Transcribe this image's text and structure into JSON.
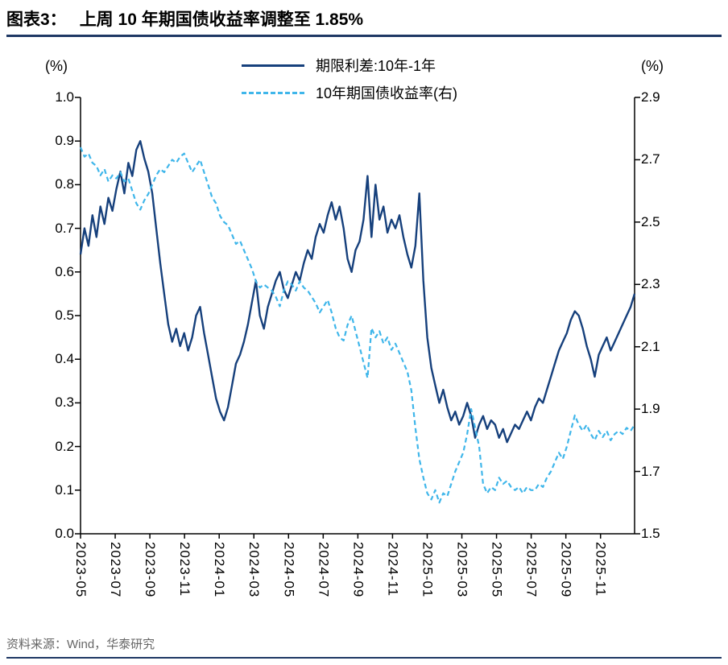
{
  "page": {
    "title_prefix": "图表3：",
    "title_text": "上周 10 年期国债收益率调整至 1.85%",
    "source": "资料来源：Wind，华泰研究"
  },
  "colors": {
    "navy": "#16407C",
    "light_blue": "#3FB6EA",
    "divider": "#1F3864",
    "axis": "#000000",
    "source_text": "#666666"
  },
  "chart_data": {
    "type": "line",
    "title": "上周 10 年期国债收益率调整至 1.85%",
    "grid": false,
    "legend_position": "top",
    "x_start": "2023-05",
    "x_frequency": "weekly (approximate readings of daily data)",
    "x_tick_interval_months": 2,
    "x_tick_labels": [
      "2023-05",
      "2023-07",
      "2023-09",
      "2023-11",
      "2024-01",
      "2024-03",
      "2024-05",
      "2024-07",
      "2024-09",
      "2024-11",
      "2025-01",
      "2025-03",
      "2025-05",
      "2025-07",
      "2025-09",
      "2025-11"
    ],
    "left_axis": {
      "label": "(%)",
      "min": 0.0,
      "max": 1.0,
      "tick_labels": [
        "0.0",
        "0.1",
        "0.2",
        "0.3",
        "0.4",
        "0.5",
        "0.6",
        "0.7",
        "0.8",
        "0.9",
        "1.0"
      ]
    },
    "right_axis": {
      "label": "(%)",
      "min": 1.5,
      "max": 2.9,
      "tick_labels": [
        "1.5",
        "1.7",
        "1.9",
        "2.1",
        "2.3",
        "2.5",
        "2.7",
        "2.9"
      ]
    },
    "series": [
      {
        "name": "期限利差:10年-1年",
        "axis": "left",
        "style": "solid",
        "color": "#16407C",
        "values": [
          0.64,
          0.7,
          0.66,
          0.73,
          0.68,
          0.75,
          0.71,
          0.77,
          0.74,
          0.79,
          0.83,
          0.78,
          0.85,
          0.82,
          0.88,
          0.9,
          0.86,
          0.83,
          0.78,
          0.7,
          0.62,
          0.55,
          0.48,
          0.44,
          0.47,
          0.43,
          0.46,
          0.42,
          0.45,
          0.5,
          0.52,
          0.46,
          0.41,
          0.36,
          0.31,
          0.28,
          0.26,
          0.29,
          0.34,
          0.39,
          0.41,
          0.44,
          0.48,
          0.53,
          0.58,
          0.5,
          0.47,
          0.52,
          0.55,
          0.58,
          0.6,
          0.56,
          0.54,
          0.57,
          0.6,
          0.58,
          0.62,
          0.65,
          0.63,
          0.68,
          0.71,
          0.69,
          0.73,
          0.76,
          0.72,
          0.75,
          0.7,
          0.63,
          0.6,
          0.65,
          0.67,
          0.72,
          0.82,
          0.68,
          0.8,
          0.72,
          0.75,
          0.69,
          0.72,
          0.7,
          0.73,
          0.68,
          0.64,
          0.61,
          0.66,
          0.78,
          0.58,
          0.45,
          0.38,
          0.34,
          0.3,
          0.33,
          0.29,
          0.26,
          0.28,
          0.25,
          0.27,
          0.3,
          0.27,
          0.22,
          0.25,
          0.27,
          0.24,
          0.26,
          0.25,
          0.22,
          0.24,
          0.21,
          0.23,
          0.25,
          0.24,
          0.26,
          0.28,
          0.26,
          0.29,
          0.31,
          0.3,
          0.33,
          0.36,
          0.39,
          0.42,
          0.44,
          0.46,
          0.49,
          0.51,
          0.5,
          0.47,
          0.43,
          0.4,
          0.36,
          0.41,
          0.43,
          0.45,
          0.42,
          0.44,
          0.46,
          0.48,
          0.5,
          0.52,
          0.55
        ]
      },
      {
        "name": "10年期国债收益率(右)",
        "axis": "right",
        "style": "dashed",
        "color": "#3FB6EA",
        "values": [
          2.74,
          2.71,
          2.72,
          2.69,
          2.68,
          2.65,
          2.67,
          2.63,
          2.65,
          2.64,
          2.66,
          2.63,
          2.64,
          2.6,
          2.56,
          2.54,
          2.57,
          2.59,
          2.62,
          2.65,
          2.67,
          2.66,
          2.68,
          2.7,
          2.69,
          2.71,
          2.72,
          2.69,
          2.66,
          2.68,
          2.7,
          2.66,
          2.62,
          2.58,
          2.56,
          2.52,
          2.5,
          2.49,
          2.46,
          2.43,
          2.44,
          2.41,
          2.38,
          2.35,
          2.31,
          2.29,
          2.3,
          2.29,
          2.28,
          2.26,
          2.23,
          2.28,
          2.31,
          2.3,
          2.28,
          2.31,
          2.29,
          2.28,
          2.26,
          2.24,
          2.21,
          2.23,
          2.25,
          2.21,
          2.16,
          2.13,
          2.12,
          2.17,
          2.2,
          2.15,
          2.1,
          2.05,
          2.0,
          2.16,
          2.13,
          2.15,
          2.11,
          2.13,
          2.09,
          2.11,
          2.08,
          2.05,
          2.02,
          1.96,
          1.84,
          1.74,
          1.68,
          1.63,
          1.61,
          1.64,
          1.6,
          1.63,
          1.62,
          1.66,
          1.7,
          1.73,
          1.76,
          1.82,
          1.9,
          1.84,
          1.78,
          1.66,
          1.63,
          1.65,
          1.64,
          1.68,
          1.66,
          1.67,
          1.65,
          1.64,
          1.65,
          1.63,
          1.65,
          1.64,
          1.64,
          1.66,
          1.65,
          1.68,
          1.7,
          1.73,
          1.76,
          1.74,
          1.78,
          1.83,
          1.88,
          1.85,
          1.83,
          1.85,
          1.82,
          1.8,
          1.83,
          1.81,
          1.83,
          1.8,
          1.82,
          1.83,
          1.82,
          1.84,
          1.83,
          1.85
        ]
      }
    ]
  }
}
